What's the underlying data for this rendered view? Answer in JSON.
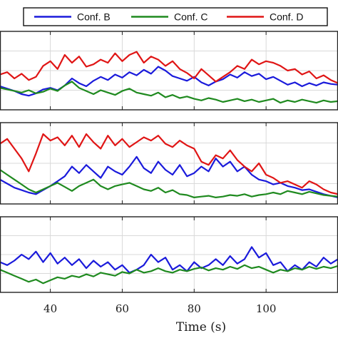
{
  "chart_data": {
    "type": "line",
    "xlabel": "Time (s)",
    "xticks": [
      40,
      60,
      80,
      100
    ],
    "xlim": [
      26,
      120
    ],
    "legend": {
      "placement": "top-right",
      "entries": [
        "Conf. B",
        "Conf. C",
        "Conf. D"
      ]
    },
    "colors": {
      "Conf. B": "#1a1adb",
      "Conf. C": "#1f8a1f",
      "Conf. D": "#e01515"
    },
    "grid": true,
    "panels": [
      {
        "ylim": [
          0,
          1
        ],
        "series": [
          {
            "name": "Conf. B",
            "x": [
              26,
              28,
              30,
              32,
              34,
              36,
              38,
              40,
              42,
              44,
              46,
              48,
              50,
              52,
              54,
              56,
              58,
              60,
              62,
              64,
              66,
              68,
              70,
              72,
              74,
              76,
              78,
              80,
              82,
              84,
              86,
              88,
              90,
              92,
              94,
              96,
              98,
              100,
              102,
              104,
              106,
              108,
              110,
              112,
              114,
              116,
              118,
              120
            ],
            "y": [
              0.3,
              0.27,
              0.24,
              0.2,
              0.18,
              0.21,
              0.26,
              0.28,
              0.25,
              0.31,
              0.4,
              0.34,
              0.3,
              0.37,
              0.42,
              0.38,
              0.45,
              0.41,
              0.48,
              0.44,
              0.51,
              0.46,
              0.55,
              0.5,
              0.43,
              0.4,
              0.37,
              0.42,
              0.35,
              0.31,
              0.36,
              0.39,
              0.45,
              0.41,
              0.48,
              0.43,
              0.46,
              0.39,
              0.42,
              0.37,
              0.32,
              0.35,
              0.3,
              0.34,
              0.31,
              0.35,
              0.33,
              0.32
            ]
          },
          {
            "name": "Conf. C",
            "x": [
              26,
              28,
              30,
              32,
              34,
              36,
              38,
              40,
              42,
              44,
              46,
              48,
              50,
              52,
              54,
              56,
              58,
              60,
              62,
              64,
              66,
              68,
              70,
              72,
              74,
              76,
              78,
              80,
              82,
              84,
              86,
              88,
              90,
              92,
              94,
              96,
              98,
              100,
              102,
              104,
              106,
              108,
              110,
              112,
              114,
              116,
              118,
              120
            ],
            "y": [
              0.28,
              0.26,
              0.24,
              0.22,
              0.25,
              0.21,
              0.23,
              0.27,
              0.24,
              0.31,
              0.36,
              0.28,
              0.24,
              0.2,
              0.25,
              0.22,
              0.19,
              0.24,
              0.27,
              0.22,
              0.2,
              0.18,
              0.22,
              0.16,
              0.19,
              0.15,
              0.17,
              0.14,
              0.12,
              0.15,
              0.13,
              0.1,
              0.12,
              0.14,
              0.11,
              0.13,
              0.1,
              0.12,
              0.14,
              0.09,
              0.12,
              0.1,
              0.13,
              0.11,
              0.09,
              0.12,
              0.1,
              0.11
            ]
          },
          {
            "name": "Conf. D",
            "x": [
              26,
              28,
              30,
              32,
              34,
              36,
              38,
              40,
              42,
              44,
              46,
              48,
              50,
              52,
              54,
              56,
              58,
              60,
              62,
              64,
              66,
              68,
              70,
              72,
              74,
              76,
              78,
              80,
              82,
              84,
              86,
              88,
              90,
              92,
              94,
              96,
              98,
              100,
              102,
              104,
              106,
              108,
              110,
              112,
              114,
              116,
              118,
              120
            ],
            "y": [
              0.45,
              0.48,
              0.4,
              0.46,
              0.38,
              0.42,
              0.56,
              0.62,
              0.52,
              0.7,
              0.6,
              0.68,
              0.55,
              0.58,
              0.64,
              0.6,
              0.72,
              0.62,
              0.7,
              0.74,
              0.6,
              0.68,
              0.64,
              0.56,
              0.62,
              0.52,
              0.47,
              0.4,
              0.52,
              0.44,
              0.36,
              0.42,
              0.48,
              0.56,
              0.52,
              0.64,
              0.58,
              0.62,
              0.6,
              0.56,
              0.5,
              0.52,
              0.45,
              0.49,
              0.4,
              0.44,
              0.38,
              0.34
            ]
          }
        ]
      },
      {
        "ylim": [
          0,
          1
        ],
        "series": [
          {
            "name": "Conf. B",
            "x": [
              26,
              28,
              30,
              32,
              34,
              36,
              38,
              40,
              42,
              44,
              46,
              48,
              50,
              52,
              54,
              56,
              58,
              60,
              62,
              64,
              66,
              68,
              70,
              72,
              74,
              76,
              78,
              80,
              82,
              84,
              86,
              88,
              90,
              92,
              94,
              96,
              98,
              100,
              102,
              104,
              106,
              108,
              110,
              112,
              114,
              116,
              118,
              120
            ],
            "y": [
              0.3,
              0.25,
              0.2,
              0.17,
              0.14,
              0.12,
              0.17,
              0.22,
              0.28,
              0.34,
              0.46,
              0.38,
              0.48,
              0.4,
              0.32,
              0.46,
              0.4,
              0.36,
              0.46,
              0.58,
              0.44,
              0.38,
              0.52,
              0.42,
              0.36,
              0.48,
              0.34,
              0.38,
              0.46,
              0.4,
              0.56,
              0.46,
              0.52,
              0.4,
              0.46,
              0.36,
              0.3,
              0.28,
              0.24,
              0.26,
              0.22,
              0.2,
              0.17,
              0.18,
              0.15,
              0.12,
              0.1,
              0.08
            ]
          },
          {
            "name": "Conf. C",
            "x": [
              26,
              28,
              30,
              32,
              34,
              36,
              38,
              40,
              42,
              44,
              46,
              48,
              50,
              52,
              54,
              56,
              58,
              60,
              62,
              64,
              66,
              68,
              70,
              72,
              74,
              76,
              78,
              80,
              82,
              84,
              86,
              88,
              90,
              92,
              94,
              96,
              98,
              100,
              102,
              104,
              106,
              108,
              110,
              112,
              114,
              116,
              118,
              120
            ],
            "y": [
              0.42,
              0.36,
              0.3,
              0.24,
              0.18,
              0.14,
              0.18,
              0.22,
              0.26,
              0.21,
              0.16,
              0.22,
              0.26,
              0.3,
              0.22,
              0.18,
              0.22,
              0.24,
              0.26,
              0.22,
              0.18,
              0.16,
              0.2,
              0.14,
              0.17,
              0.12,
              0.11,
              0.08,
              0.09,
              0.1,
              0.08,
              0.09,
              0.11,
              0.1,
              0.12,
              0.09,
              0.11,
              0.12,
              0.14,
              0.12,
              0.16,
              0.14,
              0.12,
              0.15,
              0.13,
              0.11,
              0.1,
              0.09
            ]
          },
          {
            "name": "Conf. D",
            "x": [
              26,
              28,
              30,
              32,
              34,
              36,
              38,
              40,
              42,
              44,
              46,
              48,
              50,
              52,
              54,
              56,
              58,
              60,
              62,
              64,
              66,
              68,
              70,
              72,
              74,
              76,
              78,
              80,
              82,
              84,
              86,
              88,
              90,
              92,
              94,
              96,
              98,
              100,
              102,
              104,
              106,
              108,
              110,
              112,
              114,
              116,
              118,
              120
            ],
            "y": [
              0.74,
              0.8,
              0.68,
              0.56,
              0.4,
              0.62,
              0.86,
              0.78,
              0.82,
              0.72,
              0.84,
              0.7,
              0.86,
              0.76,
              0.68,
              0.84,
              0.72,
              0.8,
              0.7,
              0.76,
              0.82,
              0.78,
              0.84,
              0.74,
              0.7,
              0.78,
              0.72,
              0.68,
              0.52,
              0.48,
              0.6,
              0.56,
              0.66,
              0.54,
              0.46,
              0.4,
              0.5,
              0.36,
              0.32,
              0.26,
              0.28,
              0.24,
              0.2,
              0.28,
              0.24,
              0.18,
              0.14,
              0.12
            ]
          }
        ]
      },
      {
        "ylim": [
          0,
          1
        ],
        "series": [
          {
            "name": "Conf. B",
            "x": [
              26,
              28,
              30,
              32,
              34,
              36,
              38,
              40,
              42,
              44,
              46,
              48,
              50,
              52,
              54,
              56,
              58,
              60,
              62,
              64,
              66,
              68,
              70,
              72,
              74,
              76,
              78,
              80,
              82,
              84,
              86,
              88,
              90,
              92,
              94,
              96,
              98,
              100,
              102,
              104,
              106,
              108,
              110,
              112,
              114,
              116,
              118,
              120
            ],
            "y": [
              0.4,
              0.36,
              0.42,
              0.5,
              0.44,
              0.54,
              0.4,
              0.52,
              0.38,
              0.46,
              0.36,
              0.44,
              0.32,
              0.42,
              0.34,
              0.4,
              0.3,
              0.36,
              0.26,
              0.3,
              0.36,
              0.5,
              0.4,
              0.46,
              0.3,
              0.36,
              0.28,
              0.4,
              0.32,
              0.36,
              0.44,
              0.36,
              0.48,
              0.38,
              0.44,
              0.6,
              0.46,
              0.52,
              0.36,
              0.4,
              0.28,
              0.36,
              0.3,
              0.4,
              0.34,
              0.46,
              0.38,
              0.44
            ]
          },
          {
            "name": "Conf. C",
            "x": [
              26,
              28,
              30,
              32,
              34,
              36,
              38,
              40,
              42,
              44,
              46,
              48,
              50,
              52,
              54,
              56,
              58,
              60,
              62,
              64,
              66,
              68,
              70,
              72,
              74,
              76,
              78,
              80,
              82,
              84,
              86,
              88,
              90,
              92,
              94,
              96,
              98,
              100,
              102,
              104,
              106,
              108,
              110,
              112,
              114,
              116,
              118,
              120
            ],
            "y": [
              0.3,
              0.26,
              0.22,
              0.18,
              0.14,
              0.17,
              0.12,
              0.16,
              0.2,
              0.18,
              0.22,
              0.2,
              0.24,
              0.21,
              0.26,
              0.24,
              0.22,
              0.27,
              0.25,
              0.3,
              0.26,
              0.28,
              0.32,
              0.28,
              0.26,
              0.3,
              0.28,
              0.31,
              0.33,
              0.29,
              0.32,
              0.3,
              0.34,
              0.31,
              0.36,
              0.32,
              0.34,
              0.3,
              0.26,
              0.3,
              0.28,
              0.32,
              0.3,
              0.34,
              0.31,
              0.34,
              0.32,
              0.35
            ]
          }
        ]
      }
    ]
  }
}
